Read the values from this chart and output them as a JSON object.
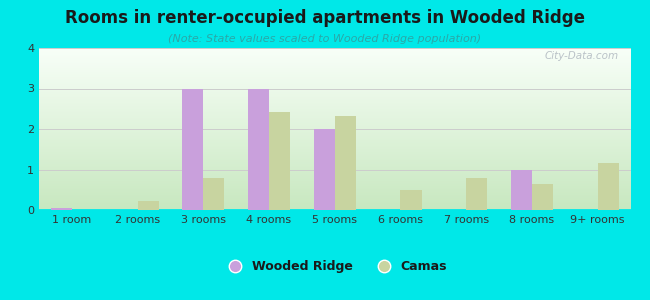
{
  "title": "Rooms in renter-occupied apartments in Wooded Ridge",
  "subtitle": "(Note: State values scaled to Wooded Ridge population)",
  "categories": [
    "1 room",
    "2 rooms",
    "3 rooms",
    "4 rooms",
    "5 rooms",
    "6 rooms",
    "7 rooms",
    "8 rooms",
    "9+ rooms"
  ],
  "wooded_ridge": [
    0.05,
    0.0,
    3.0,
    3.0,
    2.0,
    0.0,
    0.0,
    1.0,
    0.0
  ],
  "camas": [
    0.0,
    0.22,
    0.78,
    2.42,
    2.32,
    0.5,
    0.78,
    0.63,
    1.17
  ],
  "wooded_ridge_color": "#c9a0dc",
  "camas_color": "#c8d4a0",
  "background_color": "#00e8e8",
  "ylim": [
    0,
    4
  ],
  "yticks": [
    0,
    1,
    2,
    3,
    4
  ],
  "bar_width": 0.32,
  "title_fontsize": 12,
  "subtitle_fontsize": 8,
  "tick_fontsize": 8,
  "legend_fontsize": 9,
  "watermark": "City-Data.com"
}
